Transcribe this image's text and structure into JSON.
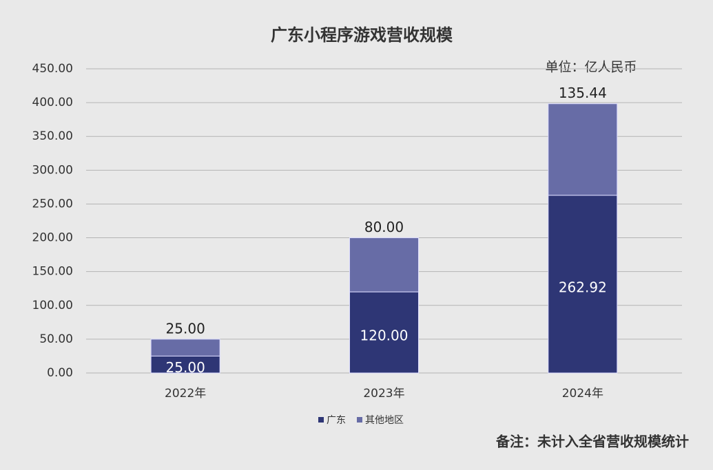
{
  "chart_data": {
    "type": "stacked-bar",
    "title": "广东小程序游戏营收规模",
    "unit_note": "单位：亿人民币",
    "footnote": "备注：未计入全省营收规模统计",
    "categories": [
      "2022年",
      "2023年",
      "2024年"
    ],
    "series": [
      {
        "name": "广东",
        "color": "#2e3675",
        "values": [
          25,
          120,
          262.92
        ],
        "value_labels": [
          "25.00",
          "120.00",
          "262.92"
        ]
      },
      {
        "name": "其他地区",
        "color": "#676ca6",
        "values": [
          25,
          80,
          135.44
        ],
        "value_labels": [
          "25.00",
          "80.00",
          "135.44"
        ]
      }
    ],
    "ylim": [
      0,
      450
    ],
    "yticks": [
      {
        "value": 0,
        "label": "0.00"
      },
      {
        "value": 50,
        "label": "50.00"
      },
      {
        "value": 100,
        "label": "100.00"
      },
      {
        "value": 150,
        "label": "150.00"
      },
      {
        "value": 200,
        "label": "200.00"
      },
      {
        "value": 250,
        "label": "250.00"
      },
      {
        "value": 300,
        "label": "300.00"
      },
      {
        "value": 350,
        "label": "350.00"
      },
      {
        "value": 400,
        "label": "400.00"
      },
      {
        "value": 450,
        "label": "450.00"
      }
    ],
    "grid": true
  }
}
